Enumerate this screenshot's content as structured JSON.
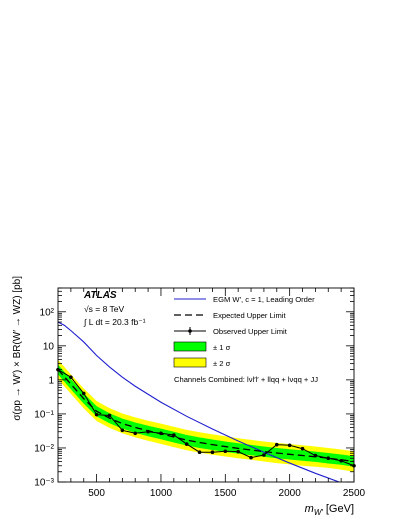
{
  "chart_data": {
    "type": "line",
    "experiment": "ATLAS",
    "energy": "√s = 8 TeV",
    "luminosity": "∫ L dt = 20.3 fb⁻¹",
    "xlabel": "m",
    "xlabel_sub": "W′",
    "xlabel_unit": "[GeV]",
    "ylabel": "σ(pp → W′) × BR(W′ → WZ)  [pb]",
    "xlim": [
      200,
      2500
    ],
    "ylim": [
      0.001,
      500
    ],
    "yscale": "log",
    "x_ticks": [
      500,
      1000,
      1500,
      2000,
      2500
    ],
    "y_ticks": [
      {
        "value": 0.001,
        "label": "10⁻³"
      },
      {
        "value": 0.01,
        "label": "10⁻²"
      },
      {
        "value": 0.1,
        "label": "10⁻¹"
      },
      {
        "value": 1,
        "label": "1"
      },
      {
        "value": 10,
        "label": "10"
      },
      {
        "value": 100,
        "label": "10²"
      }
    ],
    "legend": [
      {
        "key": "theory",
        "label": "EGM W′, c = 1, Leading Order"
      },
      {
        "key": "expected",
        "label": "Expected Upper Limit"
      },
      {
        "key": "observed",
        "label": "Observed Upper Limit"
      },
      {
        "key": "band1",
        "label": "± 1 σ"
      },
      {
        "key": "band2",
        "label": "± 2 σ"
      }
    ],
    "channels_label": "Channels Combined: lνl′l′ + llqq + lνqq + JJ",
    "colors": {
      "theory": "#1f1fcf",
      "band1": "#00ff00",
      "band2": "#ffff00",
      "line": "#000000"
    },
    "series": [
      {
        "name": "EGM W′, c = 1, Leading Order",
        "x": [
          200,
          250,
          300,
          400,
          500,
          600,
          700,
          800,
          1000,
          1200,
          1400,
          1600,
          1800,
          2000,
          2200,
          2400,
          2500
        ],
        "values": [
          50,
          40,
          28,
          13,
          5.2,
          2.4,
          1.2,
          0.65,
          0.22,
          0.085,
          0.036,
          0.016,
          0.0075,
          0.0036,
          0.0018,
          0.00095,
          0.0007
        ]
      },
      {
        "name": "Expected Upper Limit",
        "x": [
          200,
          300,
          400,
          500,
          600,
          700,
          800,
          900,
          1000,
          1100,
          1200,
          1300,
          1400,
          1500,
          1600,
          1700,
          1800,
          1900,
          2000,
          2100,
          2200,
          2300,
          2400,
          2500
        ],
        "values": [
          2.0,
          0.75,
          0.28,
          0.12,
          0.075,
          0.052,
          0.04,
          0.032,
          0.026,
          0.021,
          0.017,
          0.0145,
          0.0125,
          0.011,
          0.0097,
          0.0087,
          0.0078,
          0.0071,
          0.0065,
          0.006,
          0.0055,
          0.005,
          0.0045,
          0.004
        ],
        "band1_low": [
          1.45,
          0.53,
          0.2,
          0.085,
          0.053,
          0.037,
          0.028,
          0.022,
          0.018,
          0.0145,
          0.0118,
          0.01,
          0.0087,
          0.0077,
          0.0068,
          0.0061,
          0.0055,
          0.005,
          0.0046,
          0.0042,
          0.0039,
          0.0035,
          0.0032,
          0.0028
        ],
        "band1_high": [
          2.8,
          1.05,
          0.4,
          0.17,
          0.105,
          0.073,
          0.056,
          0.045,
          0.037,
          0.03,
          0.024,
          0.0205,
          0.0177,
          0.0155,
          0.0137,
          0.0123,
          0.011,
          0.01,
          0.0092,
          0.0085,
          0.0078,
          0.0071,
          0.0064,
          0.0057
        ],
        "band2_low": [
          1.05,
          0.39,
          0.145,
          0.062,
          0.039,
          0.027,
          0.0205,
          0.0163,
          0.0132,
          0.0106,
          0.0086,
          0.0073,
          0.0063,
          0.0056,
          0.005,
          0.0045,
          0.004,
          0.0036,
          0.0033,
          0.003,
          0.0028,
          0.0026,
          0.0023,
          0.002
        ],
        "band2_high": [
          3.9,
          1.45,
          0.56,
          0.24,
          0.148,
          0.103,
          0.079,
          0.063,
          0.052,
          0.042,
          0.034,
          0.029,
          0.025,
          0.022,
          0.0193,
          0.0173,
          0.0155,
          0.0141,
          0.013,
          0.012,
          0.011,
          0.01,
          0.009,
          0.008
        ]
      },
      {
        "name": "Observed Upper Limit",
        "x": [
          200,
          300,
          400,
          500,
          600,
          700,
          800,
          900,
          1000,
          1100,
          1200,
          1300,
          1400,
          1500,
          1600,
          1700,
          1800,
          1900,
          2000,
          2100,
          2200,
          2300,
          2400,
          2500
        ],
        "values": [
          2.0,
          1.2,
          0.4,
          0.095,
          0.09,
          0.033,
          0.027,
          0.03,
          0.027,
          0.024,
          0.013,
          0.0075,
          0.0075,
          0.008,
          0.0078,
          0.0052,
          0.0062,
          0.0125,
          0.012,
          0.0095,
          0.006,
          0.005,
          0.0042,
          0.003
        ]
      }
    ]
  }
}
